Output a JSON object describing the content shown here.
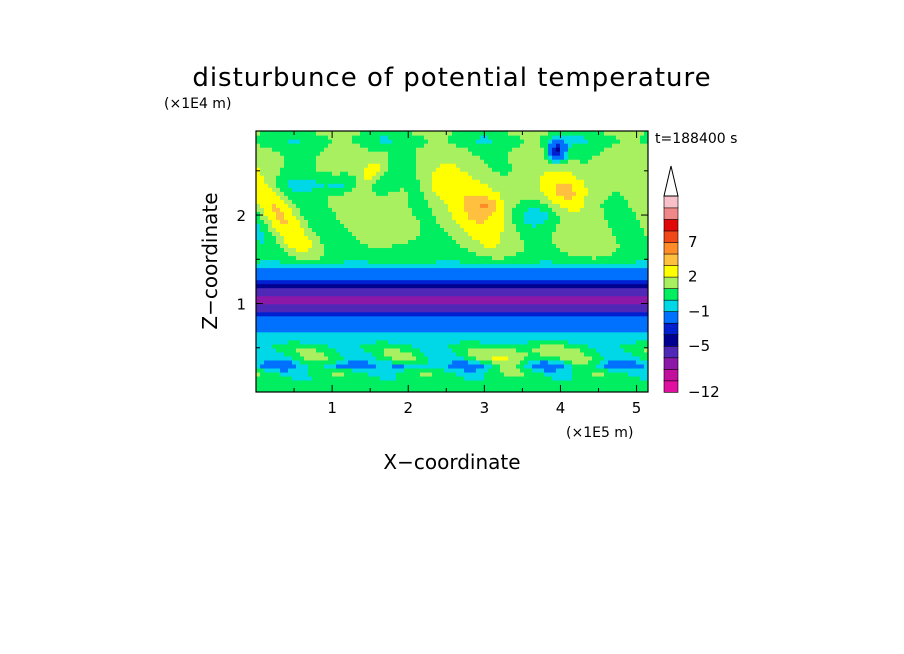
{
  "chart_data": {
    "type": "heatmap",
    "title": "disturbunce of potential temperature",
    "xlabel": "X−coordinate",
    "ylabel": "Z−coordinate",
    "x_unit": "(×1E5 m)",
    "y_unit": "(×1E4 m)",
    "time_label": "t=188400 s",
    "xlim": [
      0,
      5.15
    ],
    "ylim": [
      0,
      2.95
    ],
    "x_ticks": [
      1,
      2,
      3,
      4,
      5
    ],
    "y_ticks": [
      1,
      2
    ],
    "colorbar": {
      "levels": [
        -12,
        -11,
        -9,
        -7,
        -5,
        -4,
        -3,
        -1,
        0,
        1,
        2,
        3,
        5,
        7,
        8,
        9,
        11
      ],
      "colors": [
        "#e010a0",
        "#c0109c",
        "#8c18a8",
        "#5028b8",
        "#000090",
        "#0020d0",
        "#0070ff",
        "#00d8e8",
        "#00ee60",
        "#a8f060",
        "#ffff00",
        "#ffc040",
        "#ff8c28",
        "#f04818",
        "#e00808",
        "#f08888",
        "#f8c0c8"
      ],
      "tick_labels": [
        "−12",
        "−5",
        "−1",
        "2",
        "7"
      ],
      "tick_values": [
        -12,
        -5,
        -1,
        2,
        7
      ],
      "extend": "max"
    },
    "grid": false
  }
}
